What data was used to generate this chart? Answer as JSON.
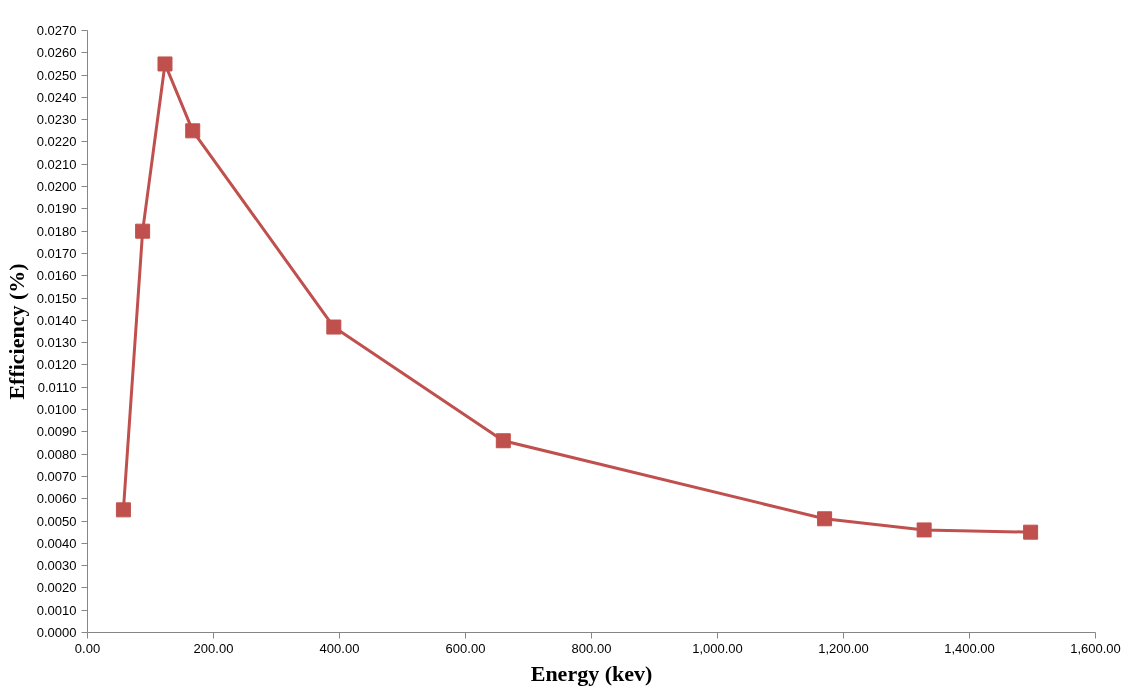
{
  "chart_data": {
    "type": "line",
    "xlabel": "Energy (kev)",
    "ylabel": "Efficiency (%)",
    "x": [
      57,
      87.5,
      123,
      167,
      391,
      660,
      1170,
      1328,
      1497
    ],
    "series": [
      {
        "color": "#c0504d",
        "values": [
          0.0055,
          0.018,
          0.0255,
          0.0225,
          0.0137,
          0.0086,
          0.0051,
          0.0046,
          0.0045
        ]
      }
    ],
    "marker": "square",
    "line_style": "solid",
    "grid": false,
    "xlim": [
      0,
      1600
    ],
    "xticks": [
      {
        "value": 0,
        "label": "0.00"
      },
      {
        "value": 200,
        "label": "200.00"
      },
      {
        "value": 400,
        "label": "400.00"
      },
      {
        "value": 600,
        "label": "600.00"
      },
      {
        "value": 800,
        "label": "800.00"
      },
      {
        "value": 1000,
        "label": "1,000.00"
      },
      {
        "value": 1200,
        "label": "1,200.00"
      },
      {
        "value": 1400,
        "label": "1,400.00"
      },
      {
        "value": 1600,
        "label": "1,600.00"
      }
    ],
    "ylim": [
      0,
      0.027
    ],
    "yticks": [
      {
        "value": 0,
        "label": "0.0000"
      },
      {
        "value": 0.001,
        "label": "0.0010"
      },
      {
        "value": 0.002,
        "label": "0.0020"
      },
      {
        "value": 0.003,
        "label": "0.0030"
      },
      {
        "value": 0.004,
        "label": "0.0040"
      },
      {
        "value": 0.005,
        "label": "0.0050"
      },
      {
        "value": 0.006,
        "label": "0.0060"
      },
      {
        "value": 0.007,
        "label": "0.0070"
      },
      {
        "value": 0.008,
        "label": "0.0080"
      },
      {
        "value": 0.009,
        "label": "0.0090"
      },
      {
        "value": 0.01,
        "label": "0.0100"
      },
      {
        "value": 0.011,
        "label": "0.0110"
      },
      {
        "value": 0.012,
        "label": "0.0120"
      },
      {
        "value": 0.013,
        "label": "0.0130"
      },
      {
        "value": 0.014,
        "label": "0.0140"
      },
      {
        "value": 0.015,
        "label": "0.0150"
      },
      {
        "value": 0.016,
        "label": "0.0160"
      },
      {
        "value": 0.017,
        "label": "0.0170"
      },
      {
        "value": 0.018,
        "label": "0.0180"
      },
      {
        "value": 0.019,
        "label": "0.0190"
      },
      {
        "value": 0.02,
        "label": "0.0200"
      },
      {
        "value": 0.021,
        "label": "0.0210"
      },
      {
        "value": 0.022,
        "label": "0.0220"
      },
      {
        "value": 0.023,
        "label": "0.0230"
      },
      {
        "value": 0.024,
        "label": "0.0240"
      },
      {
        "value": 0.025,
        "label": "0.0250"
      },
      {
        "value": 0.026,
        "label": "0.0260"
      },
      {
        "value": 0.027,
        "label": "0.0270"
      }
    ]
  }
}
